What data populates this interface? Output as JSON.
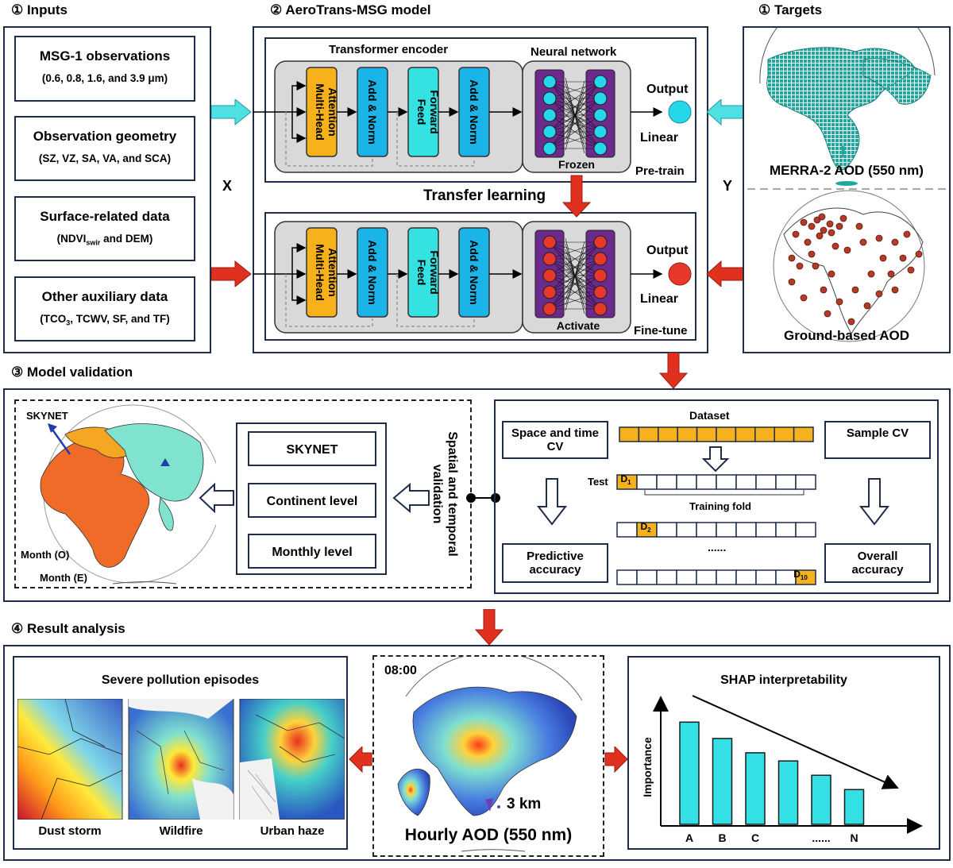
{
  "inputs": {
    "title": "① Inputs",
    "items": [
      {
        "title": "MSG-1 observations",
        "sub": "(0.6, 0.8, 1.6, and 3.9 μm)"
      },
      {
        "title": "Observation geometry",
        "sub": "(SZ, VZ, SA, VA, and SCA)"
      },
      {
        "title": "Surface-related data",
        "sub_pre": "(NDVI",
        "sub_sub": "swir",
        "sub_post": " and DEM)"
      },
      {
        "title": "Other auxiliary data",
        "sub_pre": "(TCO",
        "sub_sub": "3",
        "sub_post": ", TCWV, SF, and TF)"
      }
    ],
    "x_label": "X"
  },
  "model": {
    "title": "② AeroTrans-MSG model",
    "encoder_label": "Transformer encoder",
    "nn_label": "Neural network",
    "blocks": [
      "Multi-Head Attention",
      "Add & Norm",
      "Feed Forward",
      "Add & Norm"
    ],
    "output_label": "Output",
    "linear_label": "Linear",
    "frozen_label": "Frozen",
    "activate_label": "Activate",
    "pretrain_label": "Pre-train",
    "finetune_label": "Fine-tune",
    "transfer_label": "Transfer learning"
  },
  "targets": {
    "title": "① Targets",
    "merra_label": "MERRA-2 AOD (550 nm)",
    "ground_label": "Ground-based AOD",
    "y_label": "Y"
  },
  "validation": {
    "title": "③ Model validation",
    "skynet_map_label": "SKYNET",
    "month_o": "Month (O)",
    "month_e": "Month (E)",
    "levels": [
      "SKYNET",
      "Continent level",
      "Monthly level"
    ],
    "spatial_label": "Spatial and temporal validation",
    "space_time_cv": "Space and time CV",
    "sample_cv": "Sample CV",
    "dataset_label": "Dataset",
    "test_label": "Test",
    "d1": "D",
    "d1_sub": "1",
    "d2": "D",
    "d2_sub": "2",
    "d10": "D",
    "d10_sub": "10",
    "training_fold": "Training fold",
    "ellipsis": "......",
    "predictive": "Predictive accuracy",
    "overall": "Overall accuracy"
  },
  "analysis": {
    "title": "④ Result analysis",
    "severe_title": "Severe pollution episodes",
    "episodes": [
      "Dust storm",
      "Wildfire",
      "Urban haze"
    ],
    "time": "08:00",
    "resolution": "3 km",
    "hourly_label": "Hourly AOD (550 nm)",
    "shap_title": "SHAP interpretability"
  },
  "chart_data": {
    "type": "bar",
    "title": "SHAP interpretability",
    "ylabel": "Importance",
    "xlabel": "",
    "categories": [
      "A",
      "B",
      "C",
      "",
      "......",
      "N"
    ],
    "values": [
      100,
      84,
      70,
      62,
      48,
      34
    ],
    "ylim": [
      0,
      115
    ],
    "colors": {
      "bar": "#33e0e6",
      "stroke": "#1b1b1b"
    },
    "legend": "none",
    "grid": false
  },
  "colors": {
    "frame": "#1f2d4a",
    "cyan_arrow": "#4fe0e4",
    "red_arrow": "#e0301e",
    "attention": "#f7b21b",
    "norm": "#1ab4e8",
    "feed": "#35e2e2",
    "nn_outer": "#6b2a8c",
    "node_cyan": "#24d7ea",
    "node_red": "#e8382a",
    "fold": "#f5b21c"
  }
}
